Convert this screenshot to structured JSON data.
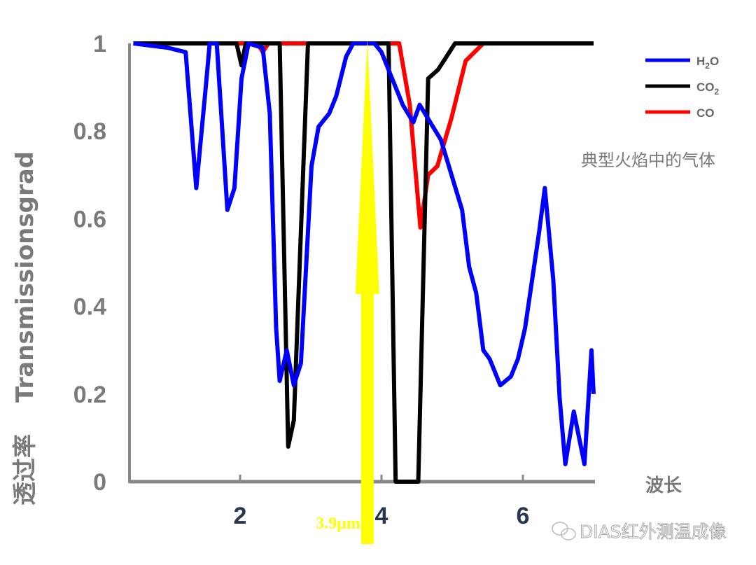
{
  "chart_data": {
    "type": "line",
    "title": "",
    "annotation_title": "典型火焰中的气体",
    "xlabel": "波长",
    "ylabel": "Transmissionsgrad",
    "ylabel_cn": "透过率",
    "xlim": [
      0.45,
      7.0
    ],
    "ylim": [
      0,
      1
    ],
    "xticks": [
      "2",
      "4",
      "6"
    ],
    "yticks": [
      "0",
      "0.2",
      "0.4",
      "0.6",
      "0.8",
      "1"
    ],
    "grid": false,
    "legend_placement": "right",
    "legend": [
      {
        "label": "H",
        "sub": "2",
        "tail": "O",
        "color": "#0000ff"
      },
      {
        "label": "CO",
        "sub": "2",
        "tail": "",
        "color": "#000000"
      },
      {
        "label": "CO",
        "sub": "",
        "tail": "",
        "color": "#ff0000"
      }
    ],
    "series": [
      {
        "name": "H2O",
        "color": "#0000ff",
        "points": [
          [
            0.49,
            1
          ],
          [
            0.98,
            0.99
          ],
          [
            1.23,
            0.98
          ],
          [
            1.38,
            0.67
          ],
          [
            1.52,
            0.91
          ],
          [
            1.57,
            1
          ],
          [
            1.67,
            1
          ],
          [
            1.82,
            0.62
          ],
          [
            1.92,
            0.67
          ],
          [
            2.02,
            0.92
          ],
          [
            2.12,
            1
          ],
          [
            2.32,
            0.99
          ],
          [
            2.42,
            0.84
          ],
          [
            2.51,
            0.35
          ],
          [
            2.56,
            0.23
          ],
          [
            2.66,
            0.3
          ],
          [
            2.76,
            0.22
          ],
          [
            2.86,
            0.27
          ],
          [
            3.01,
            0.72
          ],
          [
            3.11,
            0.81
          ],
          [
            3.26,
            0.84
          ],
          [
            3.36,
            0.88
          ],
          [
            3.5,
            0.97
          ],
          [
            3.6,
            1
          ],
          [
            3.9,
            1
          ],
          [
            4.0,
            0.98
          ],
          [
            4.15,
            0.92
          ],
          [
            4.3,
            0.86
          ],
          [
            4.45,
            0.82
          ],
          [
            4.54,
            0.86
          ],
          [
            4.69,
            0.82
          ],
          [
            4.84,
            0.78
          ],
          [
            4.99,
            0.7
          ],
          [
            5.14,
            0.62
          ],
          [
            5.24,
            0.49
          ],
          [
            5.34,
            0.43
          ],
          [
            5.44,
            0.3
          ],
          [
            5.53,
            0.28
          ],
          [
            5.68,
            0.22
          ],
          [
            5.83,
            0.24
          ],
          [
            5.93,
            0.28
          ],
          [
            6.03,
            0.35
          ],
          [
            6.13,
            0.46
          ],
          [
            6.23,
            0.57
          ],
          [
            6.31,
            0.67
          ],
          [
            6.43,
            0.46
          ],
          [
            6.52,
            0.19
          ],
          [
            6.6,
            0.04
          ],
          [
            6.72,
            0.16
          ],
          [
            6.87,
            0.04
          ],
          [
            6.97,
            0.3
          ],
          [
            7.0,
            0.2
          ]
        ]
      },
      {
        "name": "CO2",
        "color": "#000000",
        "points": [
          [
            0.49,
            1
          ],
          [
            1.95,
            1
          ],
          [
            2.02,
            0.95
          ],
          [
            2.08,
            1
          ],
          [
            2.56,
            1
          ],
          [
            2.68,
            0.08
          ],
          [
            2.76,
            0.14
          ],
          [
            2.96,
            1
          ],
          [
            4.1,
            1
          ],
          [
            4.2,
            0
          ],
          [
            4.52,
            0
          ],
          [
            4.66,
            0.92
          ],
          [
            4.8,
            0.94
          ],
          [
            5.04,
            1
          ],
          [
            7.0,
            1
          ]
        ]
      },
      {
        "name": "CO",
        "color": "#ff0000",
        "points": [
          [
            0.49,
            1
          ],
          [
            2.25,
            1
          ],
          [
            2.32,
            0.98
          ],
          [
            2.4,
            1
          ],
          [
            4.25,
            1
          ],
          [
            4.4,
            0.86
          ],
          [
            4.55,
            0.58
          ],
          [
            4.66,
            0.7
          ],
          [
            4.79,
            0.72
          ],
          [
            4.99,
            0.83
          ],
          [
            5.19,
            0.96
          ],
          [
            5.44,
            1
          ],
          [
            7.0,
            1
          ]
        ]
      }
    ],
    "marker": {
      "x": 3.8,
      "label": "3.9μm",
      "color": "#ffff00"
    }
  },
  "watermark": "DIAS红外测温成像"
}
